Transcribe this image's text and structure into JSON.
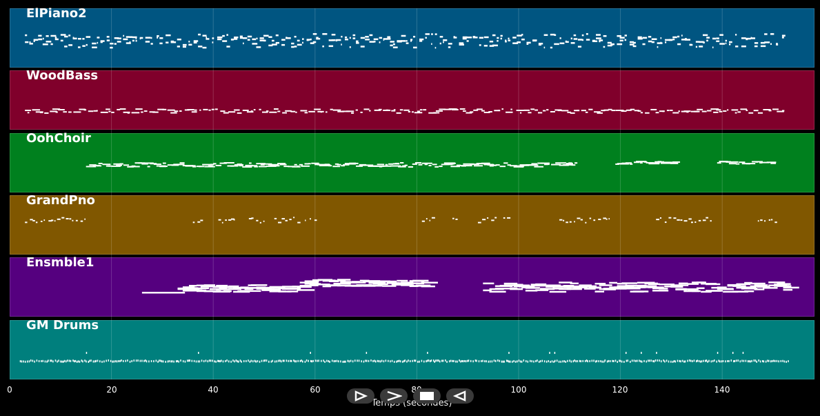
{
  "tracks": [
    {
      "name": "ElPiano2",
      "color": "#005581"
    },
    {
      "name": "WoodBass",
      "color": "#80002b"
    },
    {
      "name": "OohChoir",
      "color": "#00801e"
    },
    {
      "name": "GrandPno",
      "color": "#805700"
    },
    {
      "name": "Ensmble1",
      "color": "#55007f"
    },
    {
      "name": "GM Drums",
      "color": "#007f7d"
    }
  ],
  "chart_data": {
    "type": "piano-roll",
    "xlabel": "Temps (secondes)",
    "xlim": [
      0,
      158
    ],
    "xticks": [
      "0",
      "20",
      "40",
      "60",
      "80",
      "100",
      "120",
      "140"
    ],
    "grid": true
  },
  "controls": {
    "buttons": [
      {
        "name": "play-button",
        "icon": "play-icon"
      },
      {
        "name": "forward-button",
        "icon": "chevron-right-icon"
      },
      {
        "name": "stop-button",
        "icon": "stop-icon"
      },
      {
        "name": "rewind-button",
        "icon": "rewind-icon"
      }
    ]
  }
}
